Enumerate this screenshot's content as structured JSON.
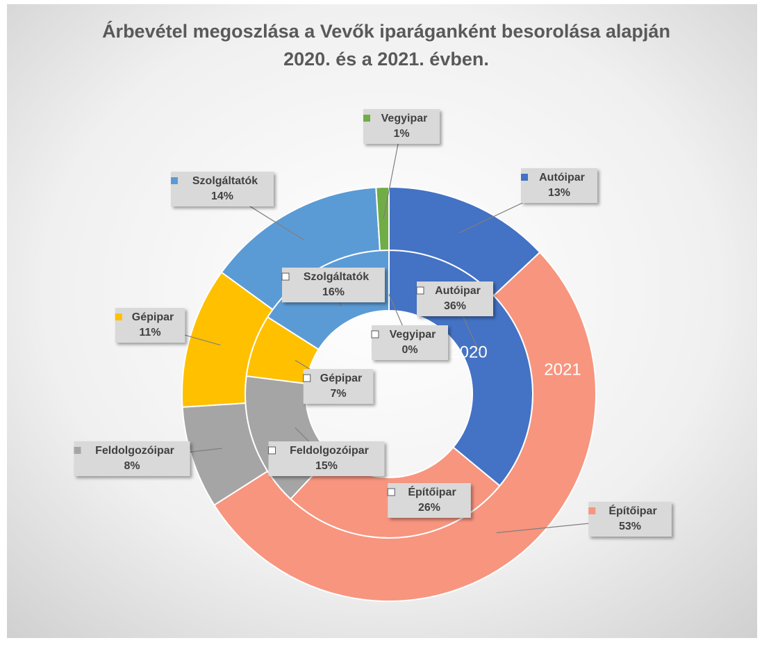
{
  "chart_data": {
    "type": "donut",
    "title": [
      "Árbevétel megoszlása a Vevők iparáganként besorolása alapján",
      "2020. és a 2021. évben."
    ],
    "categories": [
      "Autóipar",
      "Építőipar",
      "Feldolgozóipar",
      "Gépipar",
      "Szolgáltatók",
      "Vegyipar"
    ],
    "colors": [
      "#4472c4",
      "#f7957f",
      "#a5a5a5",
      "#ffc000",
      "#5b9bd5",
      "#70ad47"
    ],
    "series": [
      {
        "name": "2020",
        "values": [
          36,
          26,
          15,
          7,
          16,
          0
        ],
        "value_labels": [
          "36%",
          "26%",
          "15%",
          "7%",
          "16%",
          "0%"
        ]
      },
      {
        "name": "2021",
        "values": [
          13,
          53,
          8,
          11,
          14,
          1
        ],
        "value_labels": [
          "13%",
          "53%",
          "8%",
          "11%",
          "14%",
          "1%"
        ]
      }
    ]
  }
}
